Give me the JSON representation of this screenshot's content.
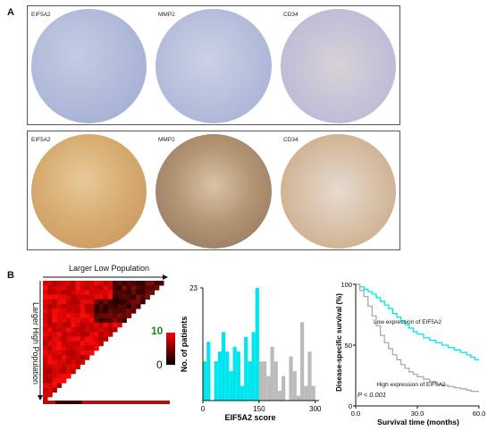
{
  "panels": {
    "a": {
      "letter": "A",
      "top_row": {
        "labels": [
          "EIF5A2",
          "MMP2",
          "CD34"
        ]
      },
      "bottom_row": {
        "labels": [
          "EIF5A2",
          "MMP2",
          "CD34"
        ]
      },
      "colors": {
        "low_stain": "#aeb8d8",
        "high_stain": "#c9a06a",
        "border": "#555555"
      }
    },
    "b": {
      "letter": "B",
      "heatmap": {
        "top_label": "Larger Low Population",
        "side_label": "Larger High Population",
        "scale_max": "10",
        "scale_min": "0"
      }
    }
  },
  "chart_data": [
    {
      "type": "bar",
      "ylabel": "No. of patients",
      "xlabel": "EIF5A2 score",
      "ylim": [
        0,
        23
      ],
      "yticks": [
        "23"
      ],
      "xticks": [
        "0",
        "150",
        "300"
      ],
      "xlim": [
        0,
        310
      ],
      "cutoff": 150,
      "series": [
        {
          "color": "#00e5ee",
          "x": [
            5,
            15,
            25,
            35,
            45,
            55,
            65,
            75,
            85,
            95,
            105,
            115,
            125,
            135,
            145
          ],
          "values": [
            8,
            12,
            0,
            8,
            10,
            14,
            10,
            6,
            11,
            10,
            3,
            13,
            8,
            14,
            23
          ]
        },
        {
          "color": "#bbbbbb",
          "x": [
            155,
            165,
            175,
            185,
            195,
            205,
            215,
            225,
            235,
            245,
            255,
            265,
            275,
            285,
            295,
            305
          ],
          "values": [
            8,
            8,
            5,
            11,
            8,
            2,
            5,
            0,
            9,
            6,
            1,
            16,
            3,
            10,
            3,
            0
          ]
        }
      ]
    },
    {
      "type": "line",
      "ylabel": "Disease-specific survival (%)",
      "xlabel": "Survival time (months)",
      "ylim": [
        0,
        100
      ],
      "yticks": [
        "0",
        "50",
        "100"
      ],
      "xlim": [
        0,
        60
      ],
      "xticks": [
        "0.0",
        "30.0",
        "60.0"
      ],
      "pvalue": "P < 0.001",
      "series": [
        {
          "name": "Low expression of EIF5A2",
          "color": "#00e5ee",
          "x": [
            0,
            2,
            4,
            6,
            8,
            10,
            12,
            14,
            16,
            18,
            20,
            22,
            24,
            26,
            28,
            30,
            33,
            36,
            39,
            42,
            45,
            48,
            51,
            54,
            56,
            58,
            60
          ],
          "y": [
            100,
            98,
            96,
            94,
            92,
            89,
            86,
            83,
            80,
            76,
            73,
            70,
            67,
            64,
            61,
            59,
            56,
            54,
            52,
            50,
            48,
            46,
            44,
            42,
            40,
            38,
            38
          ]
        },
        {
          "name": "High expression of EIF5A2",
          "color": "#aaaaaa",
          "x": [
            0,
            2,
            4,
            6,
            8,
            10,
            12,
            14,
            16,
            18,
            20,
            22,
            24,
            26,
            28,
            30,
            33,
            36,
            39,
            42,
            45,
            48,
            51,
            54,
            56,
            58,
            60
          ],
          "y": [
            100,
            95,
            90,
            82,
            74,
            66,
            58,
            52,
            47,
            42,
            38,
            34,
            31,
            28,
            26,
            24,
            22,
            20,
            18,
            17,
            16,
            15,
            14,
            13,
            12,
            12,
            12
          ]
        }
      ]
    }
  ]
}
